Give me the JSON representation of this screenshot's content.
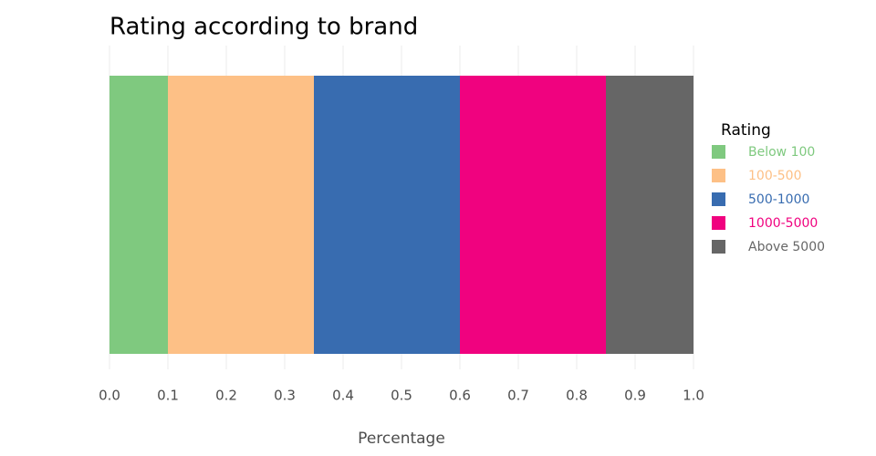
{
  "chart_data": {
    "type": "bar",
    "orientation": "horizontal",
    "stacked": true,
    "title": "Rating according to brand",
    "x_label": "Percentage",
    "legend_title": "Rating",
    "legend_position": "right",
    "grid": true,
    "series": [
      {
        "name": "Below 100",
        "color": "#7fc97f",
        "values": [
          0.1
        ]
      },
      {
        "name": "100-500",
        "color": "#fdc086",
        "values": [
          0.25
        ]
      },
      {
        "name": "500-1000",
        "color": "#386cb0",
        "values": [
          0.25
        ]
      },
      {
        "name": "1000-5000",
        "color": "#f0027f",
        "values": [
          0.25
        ]
      },
      {
        "name": "Above 5000",
        "color": "#666666",
        "values": [
          0.15
        ]
      }
    ],
    "xlim": [
      0,
      1
    ],
    "xticks": [
      {
        "value": 0,
        "label": "0.0"
      },
      0.1,
      0.2,
      0.3,
      0.4,
      0.5,
      0.6,
      0.7,
      0.8,
      0.9,
      {
        "value": 1,
        "label": "1.0"
      }
    ]
  }
}
